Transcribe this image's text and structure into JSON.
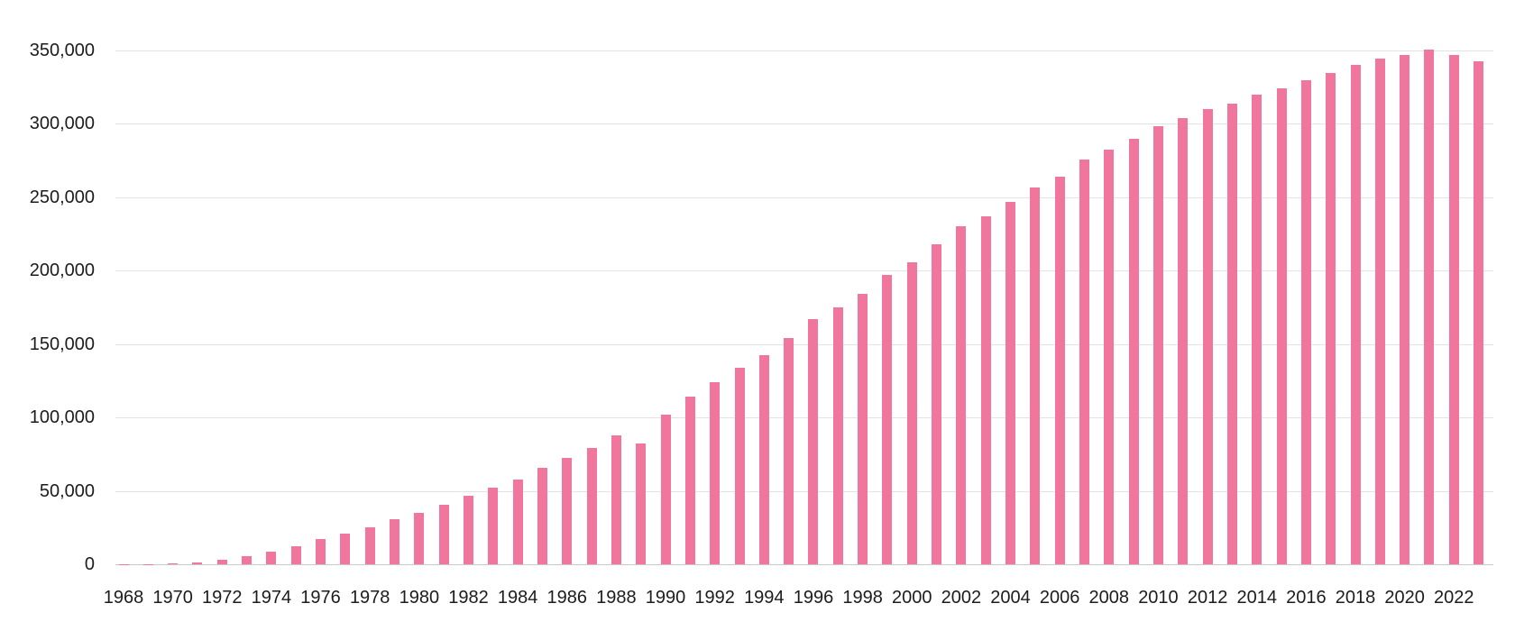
{
  "chart_data": {
    "type": "bar",
    "title": "",
    "xlabel": "",
    "ylabel": "",
    "legend": "none",
    "grid": true,
    "bar_color": "#f0769d",
    "background_color": "#ffffff",
    "ylim": [
      0,
      350000
    ],
    "ytick_step": 50000,
    "ytick_values": [
      0,
      50000,
      100000,
      150000,
      200000,
      250000,
      300000,
      350000
    ],
    "ytick_labels": [
      "0",
      "50,000",
      "100,000",
      "150,000",
      "200,000",
      "250,000",
      "300,000",
      "350,000"
    ],
    "xtick_labels": [
      "1968",
      "1970",
      "1972",
      "1974",
      "1976",
      "1978",
      "1980",
      "1982",
      "1984",
      "1986",
      "1988",
      "1990",
      "1992",
      "1994",
      "1996",
      "1998",
      "2000",
      "2002",
      "2004",
      "2006",
      "2008",
      "2010",
      "2012",
      "2014",
      "2016",
      "2018",
      "2020",
      "2022"
    ],
    "x": [
      1968,
      1969,
      1970,
      1971,
      1972,
      1973,
      1974,
      1975,
      1976,
      1977,
      1978,
      1979,
      1980,
      1981,
      1982,
      1983,
      1984,
      1985,
      1986,
      1987,
      1988,
      1989,
      1990,
      1991,
      1992,
      1993,
      1994,
      1995,
      1996,
      1997,
      1998,
      1999,
      2000,
      2001,
      2002,
      2003,
      2004,
      2005,
      2006,
      2007,
      2008,
      2009,
      2010,
      2011,
      2012,
      2013,
      2014,
      2015,
      2016,
      2017,
      2018,
      2019,
      2020,
      2021,
      2022,
      2023
    ],
    "values": [
      100,
      300,
      900,
      1500,
      2900,
      5500,
      8500,
      12000,
      17000,
      21000,
      25000,
      31000,
      35000,
      40500,
      46500,
      52000,
      58000,
      65500,
      72500,
      79500,
      88000,
      82500,
      102000,
      114500,
      124000,
      134000,
      142500,
      154000,
      167000,
      175000,
      184000,
      197000,
      205500,
      218000,
      230000,
      237000,
      247000,
      256500,
      264000,
      275500,
      282500,
      290000,
      298500,
      304000,
      310000,
      314000,
      320000,
      324500,
      330000,
      334500,
      340000,
      344500,
      347000,
      350500,
      347000,
      342500
    ]
  }
}
